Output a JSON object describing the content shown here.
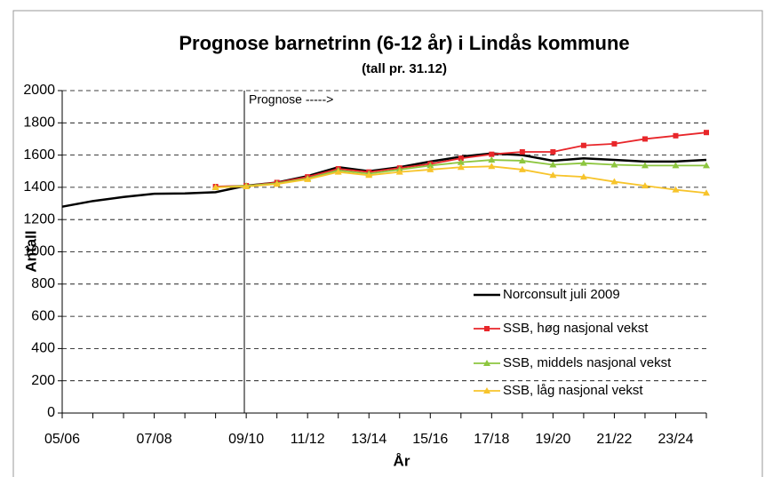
{
  "chart_data": {
    "type": "line",
    "title": "Prognose barnetrinn (6-12 år) i Lindås kommune",
    "subtitle": "(tall pr. 31.12)",
    "x_label": "År",
    "y_label": "Antall",
    "annotation": "Prognose ----->",
    "categories": [
      "05/06",
      null,
      null,
      "07/08",
      null,
      null,
      "09/10",
      null,
      "11/12",
      null,
      "13/14",
      null,
      "15/16",
      null,
      "17/18",
      null,
      "19/20",
      null,
      "21/22",
      null,
      "23/24",
      null
    ],
    "ylim": [
      0,
      2000
    ],
    "yticks": [
      0,
      200,
      400,
      600,
      800,
      1000,
      1200,
      1400,
      1600,
      1800,
      2000
    ],
    "grid": true,
    "series": [
      {
        "name": "Norconsult juli 2009",
        "color": "#000000",
        "values": [
          1280,
          1315,
          1340,
          1360,
          1362,
          1370,
          1410,
          1430,
          1470,
          1525,
          1500,
          1525,
          1560,
          1590,
          1610,
          1600,
          1565,
          1580,
          1570,
          1560,
          1560,
          1570
        ]
      },
      {
        "name": "SSB, høg nasjonal vekst",
        "color": "#e8262a",
        "values": [
          null,
          null,
          null,
          null,
          null,
          1405,
          1410,
          1430,
          1465,
          1515,
          1495,
          1520,
          1545,
          1580,
          1605,
          1620,
          1620,
          1660,
          1670,
          1700,
          1720,
          1740
        ]
      },
      {
        "name": "SSB, middels nasjonal vekst",
        "color": "#8dc63f",
        "values": [
          null,
          null,
          null,
          null,
          null,
          1400,
          1410,
          1425,
          1455,
          1505,
          1485,
          1510,
          1535,
          1555,
          1570,
          1565,
          1540,
          1550,
          1540,
          1535,
          1535,
          1535
        ]
      },
      {
        "name": "SSB, låg nasjonal vekst",
        "color": "#f7c42b",
        "values": [
          null,
          null,
          null,
          null,
          null,
          1400,
          1405,
          1420,
          1450,
          1495,
          1475,
          1495,
          1510,
          1525,
          1530,
          1510,
          1475,
          1465,
          1435,
          1410,
          1385,
          1365
        ]
      }
    ]
  }
}
